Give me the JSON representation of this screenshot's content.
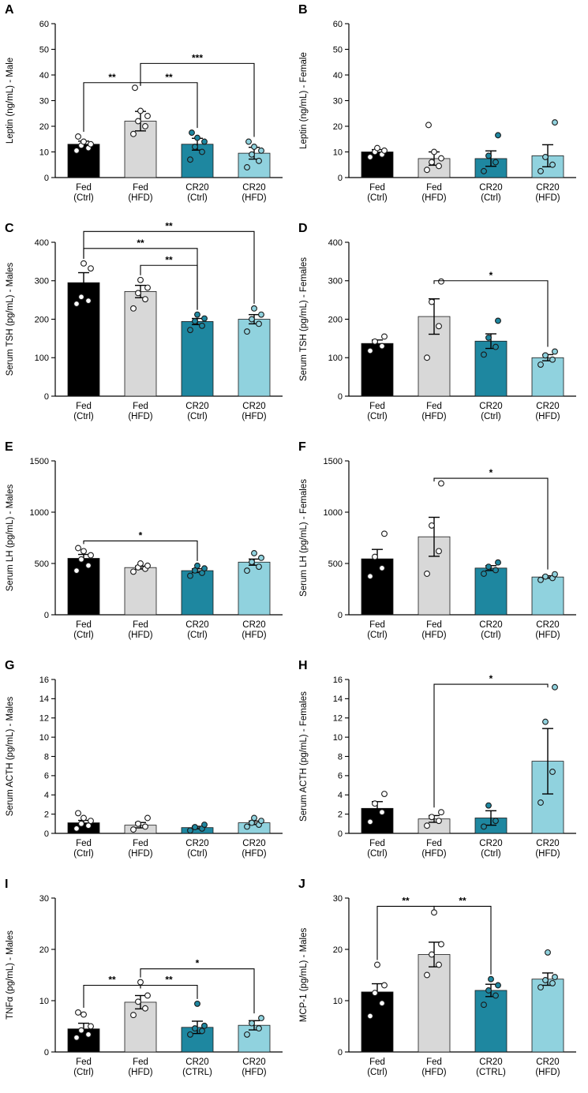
{
  "figure": {
    "description": "Multi-panel bar chart figure, panels A-J, hormone and cytokine serum levels in Fed vs CR20 mice",
    "background": "#ffffff"
  },
  "colors": {
    "bar_fills": [
      "#000000",
      "#d8d8d8",
      "#1e87a0",
      "#90d2de"
    ],
    "dot_fills": [
      "#ffffff",
      "#ffffff",
      "#1e87a0",
      "#90d2de"
    ],
    "axis": "#000000"
  },
  "chart_data": [
    {
      "type": "bar",
      "panel": "A",
      "ylabel": "Leptin (ng/mL) - Male",
      "ylim": [
        0,
        60
      ],
      "yticks": [
        0,
        10,
        20,
        30,
        40,
        50,
        60
      ],
      "categories": [
        "Fed|(Ctrl)",
        "Fed|(HFD)",
        "CR20|(Ctrl)",
        "CR20|(HFD)"
      ],
      "values": [
        13,
        22,
        13,
        9.5
      ],
      "errors": [
        1.2,
        3.8,
        2.3,
        2.3
      ],
      "dots": [
        [
          10.5,
          11.5,
          12.5,
          13,
          14,
          16
        ],
        [
          17,
          20,
          22,
          24,
          26,
          35
        ],
        [
          7,
          10,
          12,
          14,
          15.5,
          17.5
        ],
        [
          4,
          6.5,
          9,
          10.5,
          12,
          14
        ]
      ],
      "sig": [
        {
          "from": 0,
          "to": 1,
          "label": "**",
          "y": 37
        },
        {
          "from": 1,
          "to": 2,
          "label": "**",
          "y": 37
        },
        {
          "from": 1,
          "to": 3,
          "label": "***",
          "y": 44.5
        }
      ]
    },
    {
      "type": "bar",
      "panel": "B",
      "ylabel": "Leptin (ng/mL) - Female",
      "ylim": [
        0,
        60
      ],
      "yticks": [
        0,
        10,
        20,
        30,
        40,
        50,
        60
      ],
      "categories": [
        "Fed|(Ctrl)",
        "Fed|(HFD)",
        "CR20|(Ctrl)",
        "CR20|(HFD)"
      ],
      "values": [
        10,
        7.4,
        7.4,
        8.5
      ],
      "errors": [
        0.9,
        2.6,
        3.0,
        4.3
      ],
      "dots": [
        [
          8,
          9,
          10,
          10.5,
          11.5
        ],
        [
          3,
          4.5,
          6,
          7.5,
          10,
          20.5
        ],
        [
          2.5,
          6,
          8.5,
          16.5
        ],
        [
          2.5,
          5,
          8,
          21.5
        ]
      ],
      "sig": []
    },
    {
      "type": "bar",
      "panel": "C",
      "ylabel": "Serum TSH (pg/mL) - Males",
      "ylim": [
        0,
        400
      ],
      "yticks": [
        0,
        100,
        200,
        300,
        400
      ],
      "categories": [
        "Fed|(Ctrl)",
        "Fed|(HFD)",
        "CR20|(Ctrl)",
        "CR20|(HFD)"
      ],
      "values": [
        295,
        272,
        194,
        200
      ],
      "errors": [
        26,
        16,
        8,
        12
      ],
      "dots": [
        [
          240,
          248,
          258,
          332,
          345
        ],
        [
          228,
          252,
          268,
          282,
          302
        ],
        [
          172,
          183,
          195,
          202,
          212
        ],
        [
          168,
          188,
          200,
          212,
          228
        ]
      ],
      "sig": [
        {
          "from": 1,
          "to": 2,
          "label": "**",
          "y": 340
        },
        {
          "from": 0,
          "to": 2,
          "label": "**",
          "y": 384
        },
        {
          "from": 0,
          "to": 3,
          "label": "**",
          "y": 428
        }
      ]
    },
    {
      "type": "bar",
      "panel": "D",
      "ylabel": "Serum TSH (pg/mL) - Females",
      "ylim": [
        0,
        400
      ],
      "yticks": [
        0,
        100,
        200,
        300,
        400
      ],
      "categories": [
        "Fed|(Ctrl)",
        "Fed|(HFD)",
        "CR20|(Ctrl)",
        "CR20|(HFD)"
      ],
      "values": [
        137,
        207,
        143,
        100
      ],
      "errors": [
        9,
        46,
        19,
        8
      ],
      "dots": [
        [
          118,
          130,
          142,
          155
        ],
        [
          100,
          182,
          245,
          298
        ],
        [
          108,
          128,
          152,
          196
        ],
        [
          82,
          95,
          106,
          116
        ]
      ],
      "sig": [
        {
          "from": 1,
          "to": 3,
          "label": "*",
          "y": 300
        }
      ]
    },
    {
      "type": "bar",
      "panel": "E",
      "ylabel": "Serum LH (pg/mL) - Males",
      "ylim": [
        0,
        1500
      ],
      "yticks": [
        0,
        500,
        1000,
        1500
      ],
      "categories": [
        "Fed|(Ctrl)",
        "Fed|(HFD)",
        "CR20|(Ctrl)",
        "CR20|(HFD)"
      ],
      "values": [
        550,
        460,
        430,
        513
      ],
      "errors": [
        38,
        14,
        18,
        30
      ],
      "dots": [
        [
          430,
          480,
          540,
          580,
          620,
          650
        ],
        [
          420,
          448,
          462,
          478,
          500
        ],
        [
          380,
          408,
          432,
          452,
          478
        ],
        [
          430,
          468,
          515,
          555,
          600
        ]
      ],
      "sig": [
        {
          "from": 0,
          "to": 2,
          "label": "*",
          "y": 720
        }
      ]
    },
    {
      "type": "bar",
      "panel": "F",
      "ylabel": "Serum LH (pg/mL) - Females",
      "ylim": [
        0,
        1500
      ],
      "yticks": [
        0,
        500,
        1000,
        1500
      ],
      "categories": [
        "Fed|(Ctrl)",
        "Fed|(HFD)",
        "CR20|(Ctrl)",
        "CR20|(HFD)"
      ],
      "values": [
        545,
        760,
        455,
        368
      ],
      "errors": [
        92,
        190,
        24,
        12
      ],
      "dots": [
        [
          375,
          455,
          565,
          790
        ],
        [
          400,
          620,
          870,
          1280
        ],
        [
          400,
          435,
          468,
          510
        ],
        [
          340,
          358,
          372,
          395
        ]
      ],
      "sig": [
        {
          "from": 1,
          "to": 3,
          "label": "*",
          "y": 1330
        }
      ]
    },
    {
      "type": "bar",
      "panel": "G",
      "ylabel": "Serum ACTH (pg/mL) - Males",
      "ylim": [
        0,
        16
      ],
      "yticks": [
        0,
        2,
        4,
        6,
        8,
        10,
        12,
        14,
        16
      ],
      "categories": [
        "Fed|(Ctrl)",
        "Fed|(HFD)",
        "CR20|(Ctrl)",
        "CR20|(HFD)"
      ],
      "values": [
        1.1,
        0.85,
        0.6,
        1.1
      ],
      "errors": [
        0.25,
        0.28,
        0.13,
        0.18
      ],
      "dots": [
        [
          0.5,
          0.8,
          1.0,
          1.3,
          1.6,
          2.1
        ],
        [
          0.4,
          0.7,
          1.0,
          1.6
        ],
        [
          0.3,
          0.5,
          0.65,
          0.9
        ],
        [
          0.7,
          0.9,
          1.1,
          1.3,
          1.6
        ]
      ],
      "sig": []
    },
    {
      "type": "bar",
      "panel": "H",
      "ylabel": "Serum ACTH (pg/mL) - Females",
      "ylim": [
        0,
        16
      ],
      "yticks": [
        0,
        2,
        4,
        6,
        8,
        10,
        12,
        14,
        16
      ],
      "categories": [
        "Fed|(Ctrl)",
        "Fed|(HFD)",
        "CR20|(Ctrl)",
        "CR20|(HFD)"
      ],
      "values": [
        2.6,
        1.5,
        1.6,
        7.5
      ],
      "errors": [
        0.7,
        0.35,
        0.75,
        3.4
      ],
      "dots": [
        [
          1.2,
          2.2,
          3.1,
          4.1
        ],
        [
          0.8,
          1.3,
          1.7,
          2.2
        ],
        [
          0.7,
          1.3,
          2.9
        ],
        [
          3.2,
          6.4,
          11.6,
          15.2
        ]
      ],
      "sig": [
        {
          "from": 1,
          "to": 3,
          "label": "*",
          "y": 15.5
        }
      ]
    },
    {
      "type": "bar",
      "panel": "I",
      "ylabel": "TNFα (pg/mL) - Males",
      "ylim": [
        0,
        30
      ],
      "yticks": [
        0,
        10,
        20,
        30
      ],
      "categories": [
        "Fed|(Ctrl)",
        "Fed|(HFD)",
        "CR20|(CTRL)",
        "CR20|(HFD)"
      ],
      "values": [
        4.5,
        9.7,
        4.8,
        5.2
      ],
      "errors": [
        1.1,
        1.3,
        1.2,
        0.9
      ],
      "dots": [
        [
          2.8,
          3.4,
          4.2,
          5.0,
          7.3,
          7.7
        ],
        [
          7.2,
          8.5,
          9.8,
          11,
          13.6
        ],
        [
          3.4,
          4.1,
          4.6,
          5.1,
          9.4
        ],
        [
          3.4,
          4.6,
          5.6,
          6.6
        ]
      ],
      "sig": [
        {
          "from": 0,
          "to": 1,
          "label": "**",
          "y": 13
        },
        {
          "from": 1,
          "to": 2,
          "label": "**",
          "y": 13
        },
        {
          "from": 1,
          "to": 3,
          "label": "*",
          "y": 16.2
        }
      ]
    },
    {
      "type": "bar",
      "panel": "J",
      "ylabel": "MCP-1 (pg/mL) - Males",
      "ylim": [
        0,
        30
      ],
      "yticks": [
        0,
        10,
        20,
        30
      ],
      "categories": [
        "Fed|(Ctrl)",
        "Fed|(HFD)",
        "CR20|(CTRL)",
        "CR20|(HFD)"
      ],
      "values": [
        11.7,
        19,
        12,
        14.2
      ],
      "errors": [
        1.6,
        2.4,
        1.2,
        1.2
      ],
      "dots": [
        [
          7,
          9.5,
          11.5,
          13,
          17
        ],
        [
          15,
          17,
          19,
          21,
          27.2
        ],
        [
          9.2,
          11,
          12,
          13,
          14.2
        ],
        [
          12.6,
          13.4,
          14,
          14.6,
          19.4
        ]
      ],
      "sig": [
        {
          "from": 0,
          "to": 1,
          "label": "**",
          "y": 28.4
        },
        {
          "from": 1,
          "to": 2,
          "label": "**",
          "y": 28.4
        }
      ]
    }
  ]
}
